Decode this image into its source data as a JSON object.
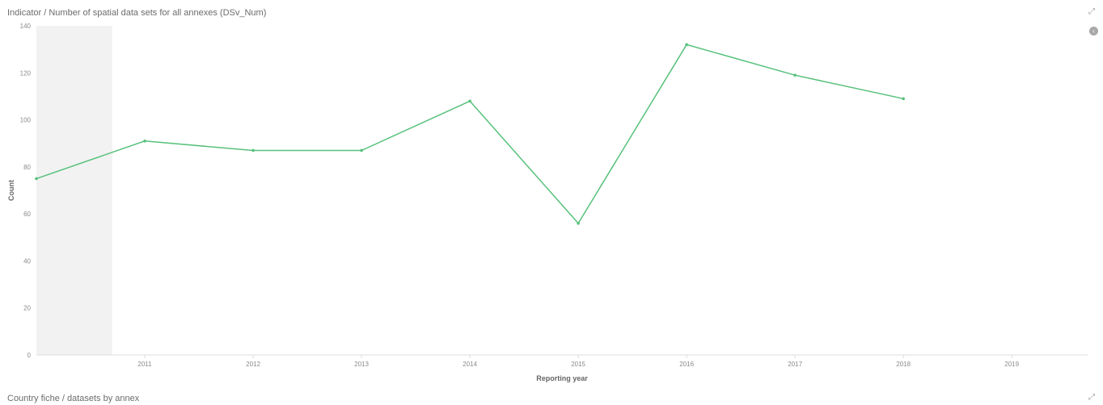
{
  "panels": {
    "top_title": "Indicator / Number of spatial data sets for all annexes (DSv_Num)",
    "bottom_title": "Country fiche / datasets by annex"
  },
  "icons": {
    "expand": "expand-icon",
    "legend_toggle": "chevron-left-icon"
  },
  "colors": {
    "line": "#57c17b",
    "highlight_band": "#f2f2f2",
    "axis": "#dddddd"
  },
  "chart_data": {
    "type": "line",
    "title": "",
    "xlabel": "Reporting year",
    "ylabel": "Count",
    "x": [
      2010,
      2011,
      2012,
      2013,
      2014,
      2015,
      2016,
      2017,
      2018
    ],
    "series": [
      {
        "values": [
          75,
          91,
          87,
          87,
          108,
          56,
          132,
          119,
          109
        ]
      }
    ],
    "x_ticks": [
      2011,
      2012,
      2013,
      2014,
      2015,
      2016,
      2017,
      2018,
      2019
    ],
    "y_ticks": [
      0,
      20,
      40,
      60,
      80,
      100,
      120,
      140
    ],
    "xlim": [
      2010,
      2019.7
    ],
    "ylim": [
      0,
      140
    ],
    "highlight_range": [
      2010,
      2010.7
    ],
    "grid": false,
    "legend": "none"
  }
}
